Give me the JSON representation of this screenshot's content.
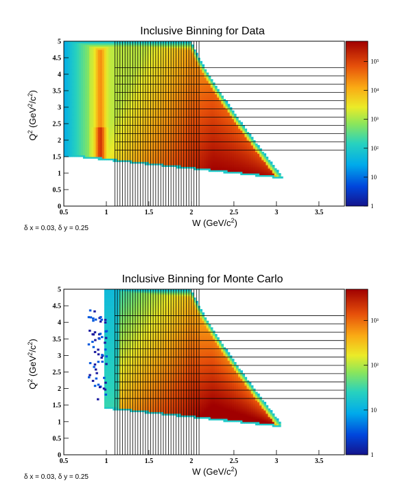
{
  "chart_data": [
    {
      "type": "heatmap",
      "title": "Inclusive Binning for Data",
      "xlabel": "W (GeV/c2)",
      "ylabel": "Q2 (GeV2/c2)",
      "xlim": [
        0.5,
        3.8
      ],
      "ylim": [
        0,
        5
      ],
      "x_ticks": [
        "0.5",
        "1",
        "1.5",
        "2",
        "2.5",
        "3",
        "3.5"
      ],
      "y_ticks": [
        "0",
        "0.5",
        "1",
        "1.5",
        "2",
        "2.5",
        "3",
        "3.5",
        "4",
        "4.5",
        "5"
      ],
      "z_scale": "log",
      "zlim": [
        1,
        500000
      ],
      "z_ticks": [
        "1",
        "10",
        "10²",
        "10³",
        "10⁴",
        "10⁵"
      ],
      "note": "δ x = 0.03, δ y = 0.25",
      "bin_edges_w": [
        1.1,
        1.13,
        1.16,
        1.19,
        1.22,
        1.25,
        1.28,
        1.31,
        1.34,
        1.37,
        1.4,
        1.43,
        1.46,
        1.49,
        1.52,
        1.55,
        1.58,
        1.61,
        1.64,
        1.67,
        1.7,
        1.73,
        1.76,
        1.79,
        1.82,
        1.85,
        1.88,
        1.91,
        1.94,
        1.97,
        2.0,
        2.03,
        2.06,
        2.09
      ],
      "bin_edges_q2": [
        1.7,
        1.95,
        2.2,
        2.45,
        2.7,
        2.95,
        3.2,
        3.45,
        3.7,
        3.95,
        4.2
      ]
    },
    {
      "type": "heatmap",
      "title": "Inclusive Binning for Monte Carlo",
      "xlabel": "W (GeV/c2)",
      "ylabel": "Q2 (GeV2/c2)",
      "xlim": [
        0.5,
        3.8
      ],
      "ylim": [
        0,
        5
      ],
      "x_ticks": [
        "0.5",
        "1",
        "1.5",
        "2",
        "2.5",
        "3",
        "3.5"
      ],
      "y_ticks": [
        "0",
        "0.5",
        "1",
        "1.5",
        "2",
        "2.5",
        "3",
        "3.5",
        "4",
        "4.5",
        "5"
      ],
      "z_scale": "log",
      "zlim": [
        1,
        5000
      ],
      "z_ticks": [
        "1",
        "10",
        "10²",
        "10³"
      ],
      "note": "δ x = 0.03, δ y = 0.25",
      "bin_edges_w": [
        1.1,
        1.13,
        1.16,
        1.19,
        1.22,
        1.25,
        1.28,
        1.31,
        1.34,
        1.37,
        1.4,
        1.43,
        1.46,
        1.49,
        1.52,
        1.55,
        1.58,
        1.61,
        1.64,
        1.67,
        1.7,
        1.73,
        1.76,
        1.79,
        1.82,
        1.85,
        1.88,
        1.91,
        1.94,
        1.97,
        2.0,
        2.03,
        2.06,
        2.09
      ],
      "bin_edges_q2": [
        1.7,
        1.95,
        2.2,
        2.45,
        2.7,
        2.95,
        3.2,
        3.45,
        3.7,
        3.95,
        4.2
      ]
    }
  ]
}
